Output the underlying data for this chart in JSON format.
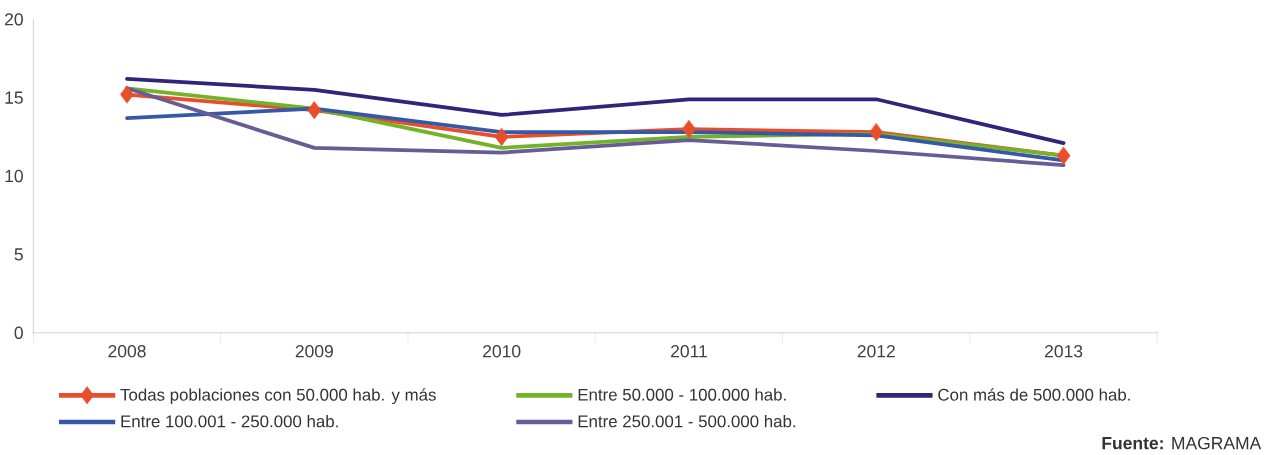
{
  "chart_data": {
    "type": "line",
    "categories": [
      "2008",
      "2009",
      "2010",
      "2011",
      "2012",
      "2013"
    ],
    "series": [
      {
        "name": "Todas  poblaciones con 50.000 hab. y más",
        "color": "#e94e2b",
        "marker": "diamond",
        "values": [
          15.2,
          14.2,
          12.5,
          13.0,
          12.8,
          11.3
        ]
      },
      {
        "name": "Entre 50.000 - 100.000 hab.",
        "color": "#72b32a",
        "values": [
          15.6,
          14.3,
          11.8,
          12.5,
          12.7,
          11.3
        ]
      },
      {
        "name": "Con más de 500.000 hab.",
        "color": "#30257a",
        "values": [
          16.2,
          15.5,
          13.9,
          14.9,
          14.9,
          12.1
        ]
      },
      {
        "name": "Entre 100.001 - 250.000 hab.",
        "color": "#3758a6",
        "values": [
          13.7,
          14.3,
          12.8,
          12.8,
          12.6,
          11.0
        ]
      },
      {
        "name": "Entre 250.001 - 500.000 hab.",
        "color": "#675c96",
        "values": [
          15.6,
          11.8,
          11.5,
          12.3,
          11.6,
          10.7
        ]
      }
    ],
    "ylim": [
      0,
      20
    ],
    "yticks": [
      0,
      5,
      10,
      15,
      20
    ],
    "grid": false,
    "legend": "bottom",
    "annotations": [
      "**Fuente:** MAGRAMA"
    ]
  }
}
